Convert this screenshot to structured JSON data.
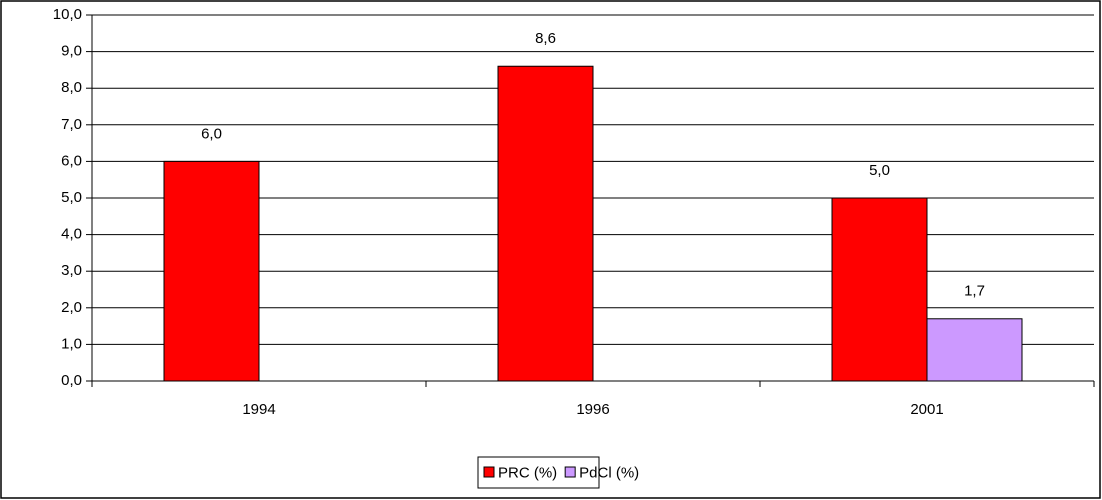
{
  "chart_data": {
    "type": "bar",
    "categories": [
      "1994",
      "1996",
      "2001"
    ],
    "series": [
      {
        "name": "PRC (%)",
        "color": "#ff0000",
        "values": [
          6.0,
          8.6,
          5.0
        ],
        "value_labels": [
          "6,0",
          "8,6",
          "5,0"
        ]
      },
      {
        "name": "PdCl (%)",
        "color": "#cc99ff",
        "values": [
          null,
          null,
          1.7
        ],
        "value_labels": [
          null,
          null,
          "1,7"
        ]
      }
    ],
    "ylim": [
      0,
      10
    ],
    "yticks": [
      {
        "value": 0,
        "label": "0,0"
      },
      {
        "value": 1,
        "label": "1,0"
      },
      {
        "value": 2,
        "label": "2,0"
      },
      {
        "value": 3,
        "label": "3,0"
      },
      {
        "value": 4,
        "label": "4,0"
      },
      {
        "value": 5,
        "label": "5,0"
      },
      {
        "value": 6,
        "label": "6,0"
      },
      {
        "value": 7,
        "label": "7,0"
      },
      {
        "value": 8,
        "label": "8,0"
      },
      {
        "value": 9,
        "label": "9,0"
      },
      {
        "value": 10,
        "label": "10,0"
      }
    ],
    "grid": true,
    "legend": "bottom"
  }
}
